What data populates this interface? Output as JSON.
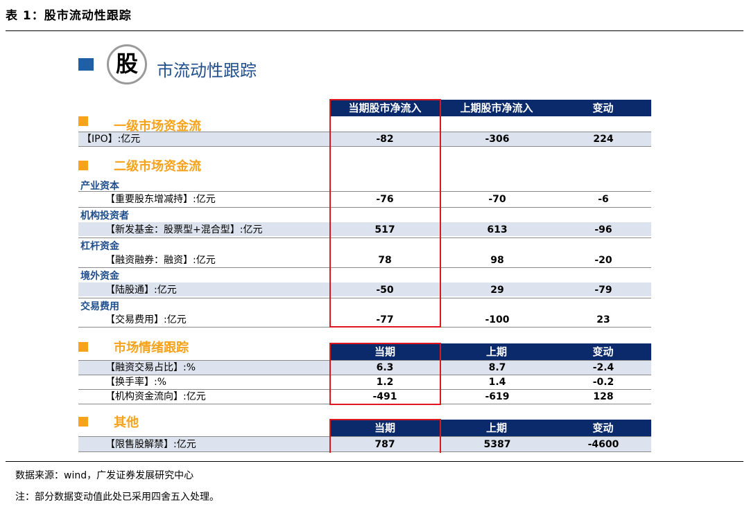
{
  "caption": "表 1：股市流动性跟踪",
  "title": {
    "circle_char": "股",
    "rest": "市流动性跟踪"
  },
  "colors": {
    "navy": "#0b2a6b",
    "blue_square": "#1f5fa6",
    "orange": "#f7a21b",
    "band": "#dde3ee",
    "red": "#e0161f",
    "sub_blue": "#1f4e8c"
  },
  "columns_top": [
    "当期股市净流入",
    "上期股市净流入",
    "变动"
  ],
  "columns_current": [
    "当期",
    "上期",
    "变动"
  ],
  "sections": {
    "primary": {
      "title": "一级市场资金流",
      "rows": [
        {
          "label": "【IPO】:亿元",
          "values": [
            "-82",
            "-306",
            "224"
          ]
        }
      ]
    },
    "secondary": {
      "title": "二级市场资金流",
      "groups": [
        {
          "name": "产业资本",
          "label": "【重要股东增减持】:亿元",
          "values": [
            "-76",
            "-70",
            "-6"
          ]
        },
        {
          "name": "机构投资者",
          "label": "【新发基金：股票型+混合型】:亿元",
          "values": [
            "517",
            "613",
            "-96"
          ]
        },
        {
          "name": "杠杆资金",
          "label": "【融资融券：融资】:亿元",
          "values": [
            "78",
            "98",
            "-20"
          ]
        },
        {
          "name": "境外资金",
          "label": "【陆股通】:亿元",
          "values": [
            "-50",
            "29",
            "-79"
          ]
        },
        {
          "name": "交易费用",
          "label": "【交易费用】:亿元",
          "values": [
            "-77",
            "-100",
            "23"
          ]
        }
      ]
    },
    "sentiment": {
      "title": "市场情绪跟踪",
      "rows": [
        {
          "label": "【融资交易占比】:%",
          "values": [
            "6.3",
            "8.7",
            "-2.4"
          ]
        },
        {
          "label": "【换手率】:%",
          "values": [
            "1.2",
            "1.4",
            "-0.2"
          ]
        },
        {
          "label": "【机构资金流向】:亿元",
          "values": [
            "-491",
            "-619",
            "128"
          ]
        }
      ]
    },
    "other": {
      "title": "其他",
      "rows": [
        {
          "label": "【限售股解禁】:亿元",
          "values": [
            "787",
            "5387",
            "-4600"
          ]
        }
      ]
    }
  },
  "footer": {
    "source": "数据来源：wind，广发证券发展研究中心",
    "note": "注：部分数据变动值此处已采用四舍五入处理。"
  }
}
